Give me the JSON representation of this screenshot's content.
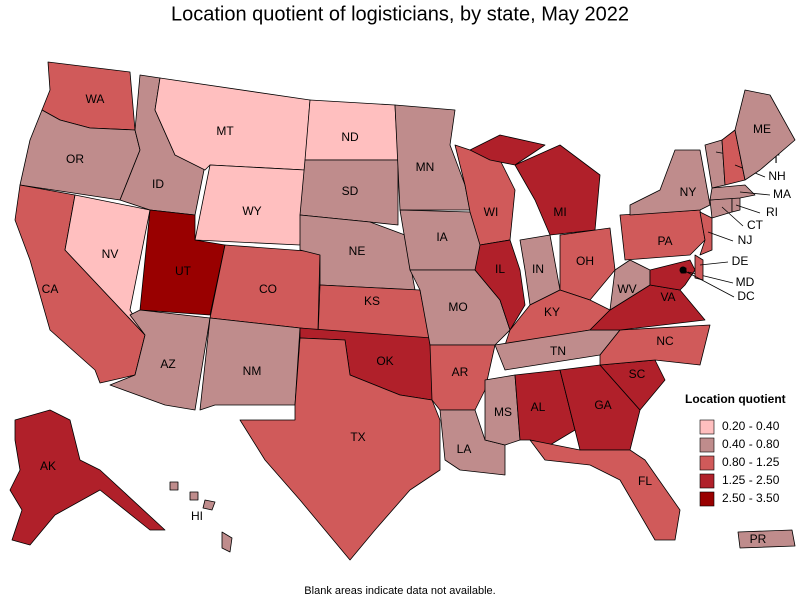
{
  "chart_data": {
    "type": "choropleth",
    "title": "Location quotient of logisticians, by state, May 2022",
    "note": "Blank areas indicate data not available.",
    "legend_title": "Location quotient",
    "bins": [
      {
        "label": "0.20 - 0.40",
        "color": "#ffbfbf"
      },
      {
        "label": "0.40 - 0.80",
        "color": "#bf8c8c"
      },
      {
        "label": "0.80 - 1.25",
        "color": "#d05a5a"
      },
      {
        "label": "1.25 - 2.50",
        "color": "#b0202a"
      },
      {
        "label": "2.50 - 3.50",
        "color": "#990000"
      }
    ],
    "states": [
      {
        "name": "WA",
        "bin": 2
      },
      {
        "name": "OR",
        "bin": 1
      },
      {
        "name": "CA",
        "bin": 2
      },
      {
        "name": "NV",
        "bin": 0
      },
      {
        "name": "ID",
        "bin": 1
      },
      {
        "name": "MT",
        "bin": 0
      },
      {
        "name": "WY",
        "bin": 0
      },
      {
        "name": "UT",
        "bin": 4
      },
      {
        "name": "CO",
        "bin": 2
      },
      {
        "name": "AZ",
        "bin": 1
      },
      {
        "name": "NM",
        "bin": 1
      },
      {
        "name": "ND",
        "bin": 0
      },
      {
        "name": "SD",
        "bin": 1
      },
      {
        "name": "NE",
        "bin": 1
      },
      {
        "name": "KS",
        "bin": 2
      },
      {
        "name": "OK",
        "bin": 3
      },
      {
        "name": "TX",
        "bin": 2
      },
      {
        "name": "MN",
        "bin": 1
      },
      {
        "name": "IA",
        "bin": 1
      },
      {
        "name": "MO",
        "bin": 1
      },
      {
        "name": "AR",
        "bin": 2
      },
      {
        "name": "LA",
        "bin": 1
      },
      {
        "name": "WI",
        "bin": 2
      },
      {
        "name": "IL",
        "bin": 3
      },
      {
        "name": "MI",
        "bin": 3
      },
      {
        "name": "IN",
        "bin": 1
      },
      {
        "name": "OH",
        "bin": 2
      },
      {
        "name": "KY",
        "bin": 2
      },
      {
        "name": "TN",
        "bin": 1
      },
      {
        "name": "MS",
        "bin": 1
      },
      {
        "name": "AL",
        "bin": 3
      },
      {
        "name": "GA",
        "bin": 3
      },
      {
        "name": "FL",
        "bin": 2
      },
      {
        "name": "SC",
        "bin": 3
      },
      {
        "name": "NC",
        "bin": 2
      },
      {
        "name": "VA",
        "bin": 3
      },
      {
        "name": "WV",
        "bin": 1
      },
      {
        "name": "PA",
        "bin": 2
      },
      {
        "name": "NY",
        "bin": 1
      },
      {
        "name": "MD",
        "bin": 3
      },
      {
        "name": "DE",
        "bin": 2
      },
      {
        "name": "NJ",
        "bin": 2
      },
      {
        "name": "CT",
        "bin": 1
      },
      {
        "name": "RI",
        "bin": 1
      },
      {
        "name": "MA",
        "bin": 1
      },
      {
        "name": "VT",
        "bin": 1
      },
      {
        "name": "NH",
        "bin": 2
      },
      {
        "name": "ME",
        "bin": 1
      },
      {
        "name": "AK",
        "bin": 3
      },
      {
        "name": "HI",
        "bin": 1
      },
      {
        "name": "PR",
        "bin": 1
      },
      {
        "name": "DC",
        "bin": 4
      }
    ]
  }
}
